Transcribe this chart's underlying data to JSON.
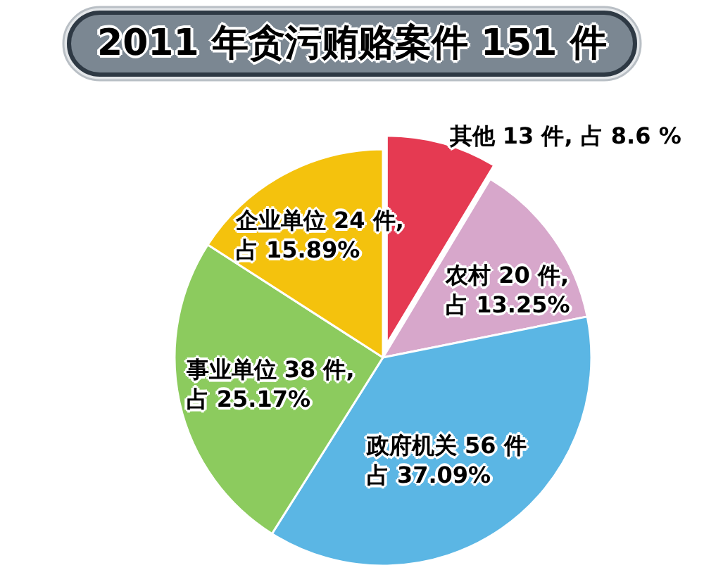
{
  "chart_data": {
    "type": "pie",
    "title": "2011 年贪污贿赂案件 151 件",
    "categories": [
      "其他",
      "农村",
      "政府机关",
      "事业单位",
      "企业单位"
    ],
    "values": [
      13,
      20,
      56,
      38,
      24
    ],
    "colors": [
      "#e53a52",
      "#d7a7cb",
      "#5bb6e4",
      "#8ccb5e",
      "#f4c20d"
    ],
    "value_labels": [
      "13 件, 占 8.6 %",
      "20 件,占 13.25%",
      "56 件占 37.09%",
      "38 件,占 25.17%",
      "24 件,占 15.89%"
    ]
  }
}
